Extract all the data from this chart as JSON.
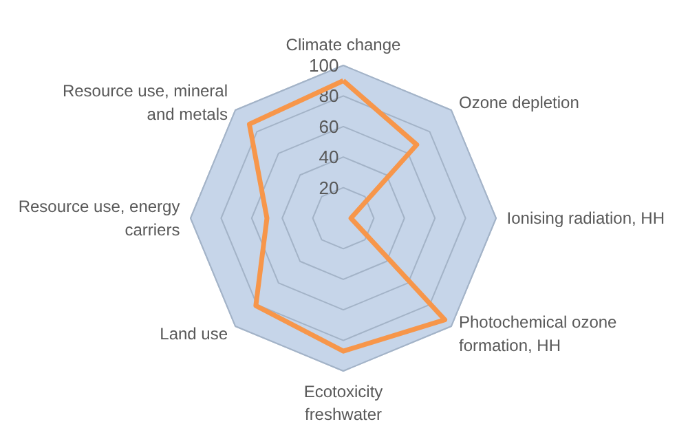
{
  "chart_data": {
    "type": "radar",
    "categories": [
      "Climate change",
      "Ozone depletion",
      "Ionising radiation, HH",
      "Photochemical ozone\nformation, HH",
      "Ecotoxicity\nfreshwater",
      "Land use",
      "Resource use, energy\ncarriers",
      "Resource use, mineral\nand metals"
    ],
    "series": [
      {
        "color": "#f7964a",
        "values": [
          90,
          68,
          5,
          94,
          87,
          81,
          50,
          87
        ]
      }
    ],
    "ylim": [
      0,
      100
    ],
    "yticks": [
      20,
      40,
      60,
      80,
      100
    ],
    "grid": true,
    "marker": "none",
    "line_style": "solid"
  }
}
